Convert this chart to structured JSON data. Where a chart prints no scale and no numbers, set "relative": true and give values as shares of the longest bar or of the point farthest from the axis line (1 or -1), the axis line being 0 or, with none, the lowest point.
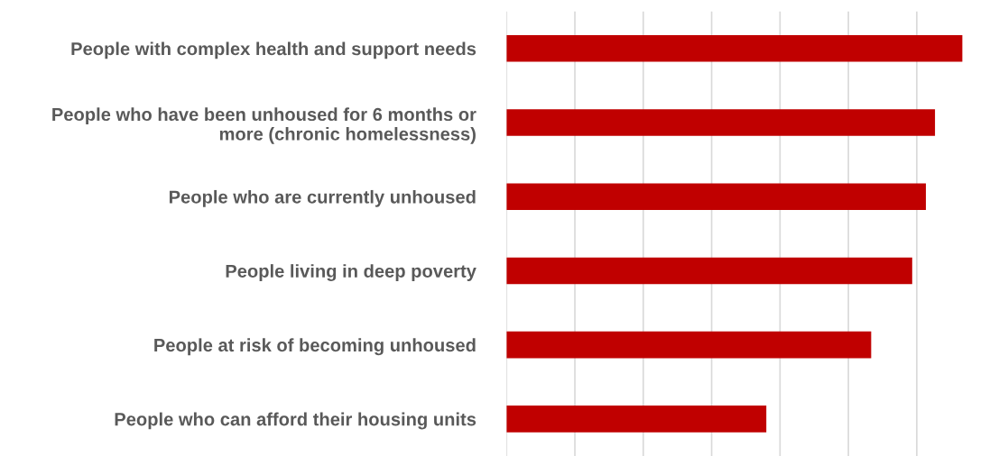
{
  "chart_data": {
    "type": "bar",
    "orientation": "horizontal",
    "relative": true,
    "categories": [
      "People with complex health and support needs",
      "People who have been unhoused for 6 months or\nmore (chronic homelessness)",
      "People who are currently unhoused",
      "People living in deep poverty",
      "People at risk of becoming unhoused",
      "People who can afford their housing units"
    ],
    "values": [
      1,
      0.94,
      0.92,
      0.89,
      0.8,
      0.57
    ],
    "color": "#c00000",
    "grid": "x",
    "tick_labels": "y"
  }
}
